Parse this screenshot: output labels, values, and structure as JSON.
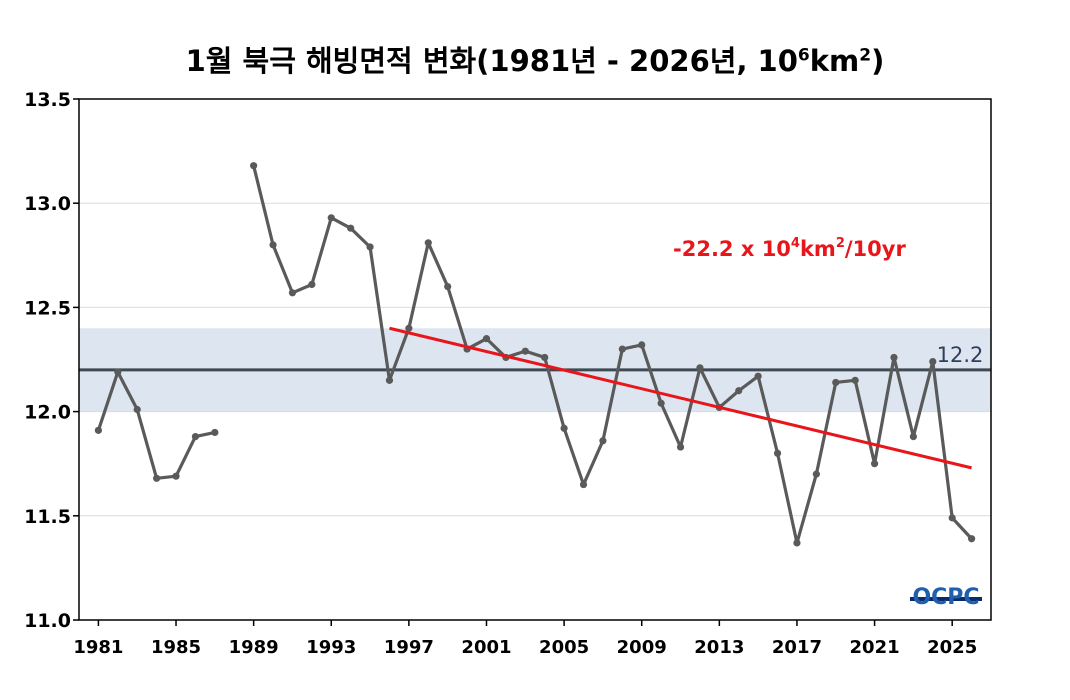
{
  "title": {
    "main": "1월 북극 해빙면적 변화(1981년 - 2026년, 10",
    "sup1": "6",
    "unit": "km",
    "sup2": "2",
    "close": ")"
  },
  "logo_text": "OCPC",
  "colors": {
    "line": "#5a5a5a",
    "trend": "#e8161b",
    "reference": "#3f4a55",
    "band": "#dde6f0",
    "grid": "#dcdcdc"
  },
  "chart_data": {
    "type": "line",
    "x_range": [
      1980,
      2027
    ],
    "ylim": [
      11.0,
      13.5
    ],
    "y_ticks": [
      "11.0",
      "11.5",
      "12.0",
      "12.5",
      "13.0",
      "13.5"
    ],
    "x_ticks": [
      "1981",
      "1985",
      "1989",
      "1993",
      "1997",
      "2001",
      "2005",
      "2009",
      "2013",
      "2017",
      "2021",
      "2025"
    ],
    "grid": true,
    "series": [
      {
        "x": [
          1981,
          1982,
          1983,
          1984,
          1985,
          1986,
          1987,
          1988,
          1989,
          1990,
          1991,
          1992,
          1993,
          1994,
          1995,
          1996,
          1997,
          1998,
          1999,
          2000,
          2001,
          2002,
          2003,
          2004,
          2005,
          2006,
          2007,
          2008,
          2009,
          2010,
          2011,
          2012,
          2013,
          2014,
          2015,
          2016,
          2017,
          2018,
          2019,
          2020,
          2021,
          2022,
          2023,
          2024,
          2025,
          2026
        ],
        "y": [
          11.91,
          12.19,
          12.01,
          11.68,
          11.69,
          11.88,
          11.9,
          null,
          13.18,
          12.8,
          12.57,
          12.61,
          12.93,
          12.88,
          12.79,
          12.15,
          12.4,
          12.81,
          12.6,
          12.3,
          12.35,
          12.26,
          12.29,
          12.26,
          11.92,
          11.65,
          11.86,
          12.3,
          12.32,
          12.04,
          11.83,
          12.21,
          12.02,
          12.1,
          12.17,
          11.8,
          11.37,
          11.7,
          12.14,
          12.15,
          11.75,
          12.26,
          11.88,
          12.24,
          11.49,
          11.39
        ]
      }
    ],
    "trend": {
      "x": [
        1996,
        2026
      ],
      "y": [
        12.4,
        11.73
      ],
      "label_main": "-22.2 x 10",
      "label_sup1": "4",
      "label_unit": "km",
      "label_sup2": "2",
      "label_tail": "/10yr"
    },
    "reference": {
      "value": 12.2,
      "label": "12.2",
      "band": [
        12.0,
        12.4
      ]
    }
  }
}
